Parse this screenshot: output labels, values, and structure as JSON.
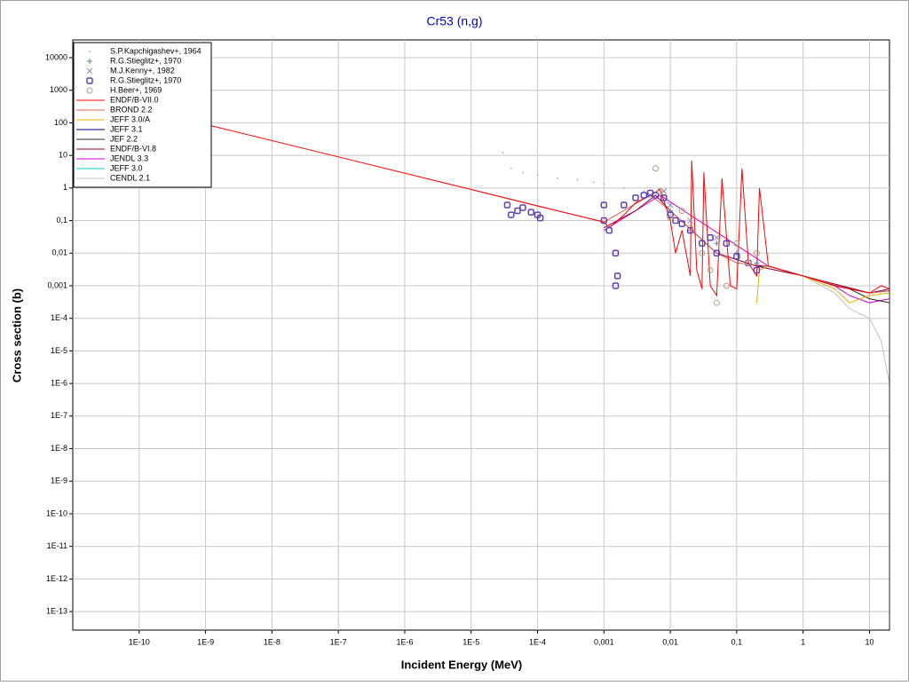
{
  "chart_data": {
    "type": "line",
    "title": "Cr53 (n,g)",
    "x_label": "Incident Energy (MeV)",
    "y_label": "Cross section (b)",
    "log_x": true,
    "log_y": true,
    "grid": true,
    "legend": "top-left",
    "xlim": [
      1e-11,
      20
    ],
    "ylim": [
      2.7e-14,
      35000
    ],
    "xticks": [
      {
        "value": 1e-10,
        "label": "1E-10"
      },
      {
        "value": 1e-09,
        "label": "1E-9"
      },
      {
        "value": 1e-08,
        "label": "1E-8"
      },
      {
        "value": 1e-07,
        "label": "1E-7"
      },
      {
        "value": 1e-06,
        "label": "1E-6"
      },
      {
        "value": 1e-05,
        "label": "1E-5"
      },
      {
        "value": 0.0001,
        "label": "1E-4"
      },
      {
        "value": 0.001,
        "label": "0,001"
      },
      {
        "value": 0.01,
        "label": "0,01"
      },
      {
        "value": 0.1,
        "label": "0,1"
      },
      1,
      10
    ],
    "yticks": [
      10000,
      1000,
      100,
      10,
      1,
      {
        "value": 0.1,
        "label": "0,1"
      },
      {
        "value": 0.01,
        "label": "0,01"
      },
      {
        "value": 0.001,
        "label": "0,001"
      },
      {
        "value": 0.0001,
        "label": "1E-4"
      },
      {
        "value": 1e-05,
        "label": "1E-5"
      },
      {
        "value": 1e-06,
        "label": "1E-6"
      },
      {
        "value": 1e-07,
        "label": "1E-7"
      },
      {
        "value": 1e-08,
        "label": "1E-8"
      },
      {
        "value": 1e-09,
        "label": "1E-9"
      },
      {
        "value": 1e-10,
        "label": "1E-10"
      },
      {
        "value": 1e-11,
        "label": "1E-11"
      },
      {
        "value": 1e-12,
        "label": "1E-12"
      },
      {
        "value": 1e-13,
        "label": "1E-13"
      }
    ],
    "series": [
      {
        "name": "S.P.Kapchigashev+, 1964",
        "color": "#a0a8b8",
        "marker": "dot",
        "x": [
          3e-05,
          4e-05,
          6e-05,
          0.0001,
          0.0002,
          0.0004,
          0.0007,
          0.001,
          0.002,
          0.004
        ],
        "values": [
          12,
          4,
          3,
          2.5,
          2,
          1.8,
          1.5,
          1.3,
          1,
          0.8
        ]
      },
      {
        "name": "R.G.Stieglitz+, 1970",
        "color": "#6080a0",
        "marker": "plus",
        "x": [
          0.01,
          0.02,
          0.05,
          0.1,
          0.2
        ],
        "values": [
          0.2,
          0.05,
          0.02,
          0.01,
          0.005
        ]
      },
      {
        "name": "M.J.Kenny+, 1982",
        "color": "#8090c0",
        "marker": "x",
        "x": [
          0.005,
          0.008,
          0.01,
          0.02,
          0.05
        ],
        "values": [
          0.6,
          0.8,
          0.3,
          0.1,
          0.03
        ]
      },
      {
        "name": "R.G.Stieglitz+, 1970",
        "color": "#6040b0",
        "marker": "square",
        "x": [
          3.5e-05,
          4e-05,
          5e-05,
          6e-05,
          8e-05,
          0.0001,
          0.00011,
          0.001,
          0.001,
          0.0012,
          0.0015,
          0.0015,
          0.0016,
          0.002,
          0.003,
          0.004,
          0.005,
          0.006,
          0.008,
          0.01,
          0.012,
          0.015,
          0.02,
          0.03,
          0.04,
          0.05,
          0.07,
          0.1,
          0.15,
          0.2
        ],
        "values": [
          0.3,
          0.15,
          0.2,
          0.25,
          0.18,
          0.15,
          0.12,
          0.3,
          0.1,
          0.05,
          0.01,
          0.001,
          0.002,
          0.3,
          0.5,
          0.6,
          0.7,
          0.6,
          0.5,
          0.15,
          0.1,
          0.08,
          0.05,
          0.02,
          0.03,
          0.01,
          0.02,
          0.008,
          0.005,
          0.003
        ]
      },
      {
        "name": "H.Beer+, 1969",
        "color": "#b0a080",
        "marker": "circle",
        "x": [
          0.006,
          0.007,
          0.01,
          0.015,
          0.02,
          0.03,
          0.04,
          0.05,
          0.07,
          0.1,
          0.15,
          0.2
        ],
        "values": [
          4,
          0.8,
          0.12,
          0.2,
          0.06,
          0.01,
          0.003,
          0.0003,
          0.001,
          0.02,
          0.005,
          0.01
        ]
      },
      {
        "name": "ENDF/B-VII.0",
        "color": "#ff0000",
        "x": [
          1e-11,
          1e-09,
          1e-07,
          1e-05,
          0.0001,
          0.001,
          0.0012,
          0.002,
          0.003,
          0.005,
          0.007,
          0.008,
          0.01,
          0.012,
          0.015,
          0.02,
          0.021,
          0.025,
          0.03,
          0.032,
          0.04,
          0.05,
          0.06,
          0.08,
          0.1,
          0.12,
          0.15,
          0.2,
          0.22,
          0.3,
          1,
          3,
          10,
          15,
          20,
          20
        ],
        "values": [
          900,
          90,
          9,
          0.9,
          0.28,
          0.09,
          0.06,
          0.15,
          0.35,
          0.6,
          0.9,
          0.4,
          0.1,
          0.01,
          0.05,
          0.002,
          7,
          0.003,
          0.0008,
          3,
          0.001,
          0.0005,
          2,
          0.001,
          0.0008,
          4,
          0.005,
          0.002,
          1,
          0.004,
          0.002,
          0.001,
          0.0006,
          0.001,
          0.0008,
          3e-14
        ]
      },
      {
        "name": "BROND 2.2",
        "color": "#e06050",
        "x": [
          1e-05,
          0.001,
          0.005,
          0.01,
          0.05,
          0.1,
          0.3,
          1,
          5,
          10,
          20
        ],
        "values": [
          0.9,
          0.09,
          0.6,
          0.2,
          0.01,
          0.005,
          0.004,
          0.002,
          0.0008,
          0.0006,
          0.0007
        ]
      },
      {
        "name": "JEFF 3.0/A",
        "color": "#e8b000",
        "x": [
          0.2,
          0.22,
          0.3,
          1,
          3,
          5,
          10,
          20
        ],
        "values": [
          0.0003,
          0.003,
          0.004,
          0.002,
          0.0008,
          0.0003,
          0.0005,
          0.0006
        ]
      },
      {
        "name": "JEFF 3.1",
        "color": "#000080",
        "x": [
          0.2,
          0.3,
          1,
          3,
          10,
          20
        ],
        "values": [
          0.004,
          0.004,
          0.002,
          0.001,
          0.0006,
          0.0007
        ]
      },
      {
        "name": "JEF 2.2",
        "color": "#302020",
        "x": [
          0.3,
          1,
          5,
          10,
          20
        ],
        "values": [
          0.004,
          0.002,
          0.0008,
          0.0004,
          0.0003
        ]
      },
      {
        "name": "ENDF/B-VI.8",
        "color": "#900040",
        "x": [
          0.001,
          0.003,
          0.006,
          0.01,
          0.05,
          0.2,
          1,
          10,
          20
        ],
        "values": [
          0.06,
          0.2,
          0.6,
          0.2,
          0.01,
          0.004,
          0.002,
          0.0006,
          0.0008
        ]
      },
      {
        "name": "JENDL 3.3",
        "color": "#d000d0",
        "x": [
          0.001,
          0.003,
          0.007,
          0.3,
          1,
          3,
          5,
          10,
          20
        ],
        "values": [
          0.05,
          0.2,
          0.6,
          0.004,
          0.002,
          0.001,
          0.0005,
          0.0003,
          0.0004
        ]
      },
      {
        "name": "JEFF 3.0",
        "color": "#00d0d0",
        "x": [
          0.3,
          1,
          10,
          20
        ],
        "values": [
          0.004,
          0.002,
          0.0006,
          0.0007
        ]
      },
      {
        "name": "CENDL 2.1",
        "color": "#c0c0c0",
        "x": [
          0.3,
          1,
          3,
          5,
          10,
          15,
          20
        ],
        "values": [
          0.004,
          0.002,
          0.0006,
          0.0002,
          0.0001,
          2e-05,
          1e-06
        ]
      }
    ]
  }
}
